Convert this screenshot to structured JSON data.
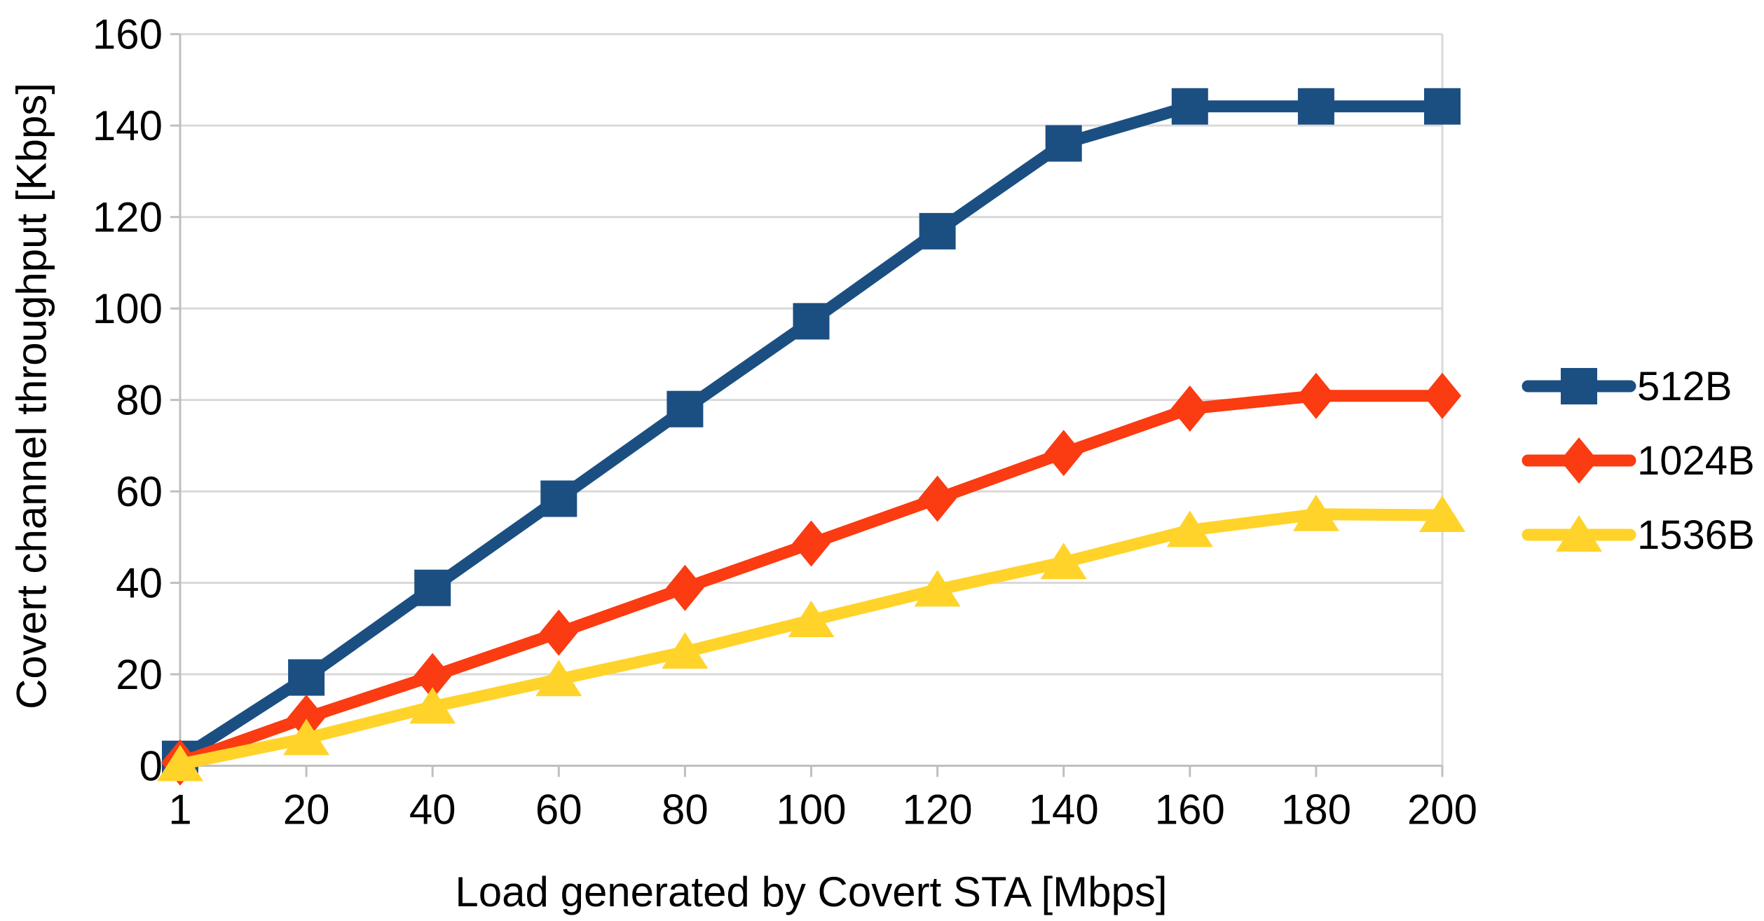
{
  "chart_data": {
    "type": "line",
    "title": "",
    "xlabel": "Load generated by Covert STA [Mbps]",
    "ylabel": "Covert channel throughput [Kbps]",
    "categories": [
      1,
      20,
      40,
      60,
      80,
      100,
      120,
      140,
      160,
      180,
      200
    ],
    "x_tick_labels": [
      "1",
      "20",
      "40",
      "60",
      "80",
      "100",
      "120",
      "140",
      "160",
      "180",
      "200"
    ],
    "y_ticks": [
      0,
      20,
      40,
      60,
      80,
      100,
      120,
      140,
      160
    ],
    "y_tick_labels": [
      "0",
      "20",
      "40",
      "60",
      "80",
      "100",
      "120",
      "140",
      "160"
    ],
    "ylim": [
      0,
      160
    ],
    "grid": "horizontal",
    "legend_position": "right",
    "series": [
      {
        "name": "512B",
        "marker": "square",
        "color": "#1B4F82",
        "values": [
          1.5,
          19.3,
          38.9,
          58.4,
          78.0,
          97.2,
          116.9,
          136.1,
          144.2,
          144.2,
          144.2
        ]
      },
      {
        "name": "1024B",
        "marker": "diamond",
        "color": "#FB3B11",
        "values": [
          0.7,
          10.5,
          19.6,
          29.1,
          38.9,
          48.6,
          58.4,
          68.4,
          78.1,
          80.9,
          80.9
        ]
      },
      {
        "name": "1536B",
        "marker": "triangle",
        "color": "#FFD32A",
        "values": [
          0.3,
          6.0,
          12.9,
          18.9,
          24.9,
          31.8,
          38.5,
          44.5,
          51.5,
          55.0,
          54.8
        ]
      }
    ]
  },
  "style": {
    "gridline_color": "#D9D9D9",
    "axis_line_color": "#BFBFBF",
    "text_color": "#000000",
    "background": "#FFFFFF"
  }
}
